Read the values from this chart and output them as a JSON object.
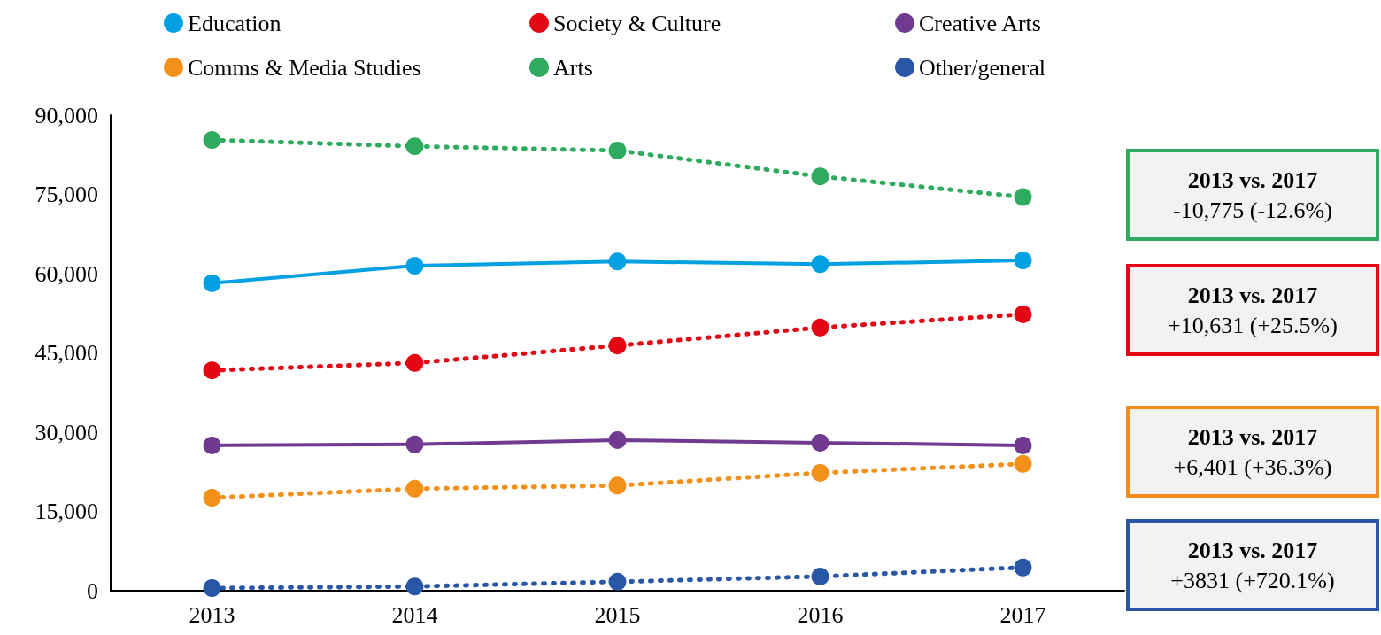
{
  "chart_data": {
    "type": "line",
    "categories": [
      "2013",
      "2014",
      "2015",
      "2016",
      "2017"
    ],
    "series": [
      {
        "name": "Education",
        "color": "#00a0e3",
        "line_style": "solid",
        "values": [
          58200,
          61500,
          62300,
          61800,
          62500
        ]
      },
      {
        "name": "Society & Culture",
        "color": "#e30613",
        "line_style": "dotted",
        "values": [
          41700,
          43100,
          46400,
          49800,
          52300
        ]
      },
      {
        "name": "Creative Arts",
        "color": "#6f3a8f",
        "line_style": "solid",
        "values": [
          27500,
          27700,
          28500,
          28000,
          27500
        ]
      },
      {
        "name": "Comms & Media Studies",
        "color": "#f39019",
        "line_style": "dotted",
        "values": [
          17600,
          19300,
          19900,
          22300,
          24000
        ]
      },
      {
        "name": "Arts",
        "color": "#2eab5f",
        "line_style": "dotted",
        "values": [
          85300,
          84100,
          83300,
          78400,
          74500
        ]
      },
      {
        "name": "Other/general",
        "color": "#2a56a6",
        "line_style": "dotted",
        "values": [
          500,
          800,
          1700,
          2700,
          4400
        ]
      }
    ],
    "ylim": [
      0,
      90000
    ],
    "yticks": [
      0,
      {
        "value": 15000,
        "label": "15,000"
      },
      {
        "value": 30000,
        "label": "30,000"
      },
      {
        "value": 45000,
        "label": "45,000"
      },
      {
        "value": 60000,
        "label": "60,000"
      },
      {
        "value": 75000,
        "label": "75,000"
      },
      {
        "value": 90000,
        "label": "90,000"
      }
    ],
    "grid": false,
    "legend": "top",
    "marker": "circle",
    "annotations": [
      "2013 vs. 2017\n-10,775 (-12.6%)",
      "2013 vs. 2017\n+10,631 (+25.5%)",
      "2013 vs. 2017\n+6,401 (+36.3%)",
      "2013 vs. 2017\n+3831 (+720.1%)"
    ]
  }
}
